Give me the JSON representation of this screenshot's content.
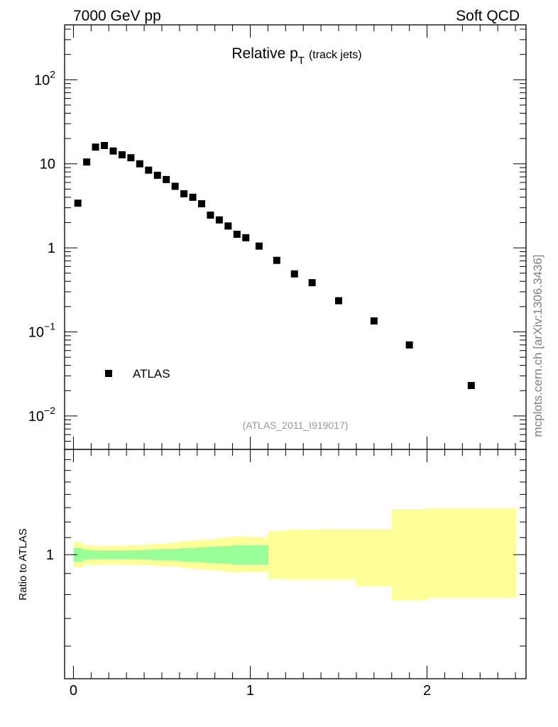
{
  "header": {
    "left": "7000 GeV pp",
    "right": "Soft QCD"
  },
  "plot_title": {
    "main": "Relative p",
    "sub": "T",
    "suffix": "(track jets)"
  },
  "watermark": "mcplots.cern.ch [arXiv:1306.3436]",
  "analysis_id": "(ATLAS_2011_I919017)",
  "colors": {
    "marker": "#000000",
    "band_stat": "#99ff99",
    "band_total": "#ffff99",
    "analysis_text": "#999999",
    "watermark_text": "#808080"
  },
  "chart_data": [
    {
      "type": "scatter",
      "panel": "main",
      "yscale": "log",
      "xlim": [
        -0.05,
        2.56
      ],
      "ylim": [
        0.004,
        450
      ],
      "grid": false,
      "legend": {
        "position": "bottom-left",
        "entries": [
          "ATLAS"
        ]
      },
      "yticks": [
        {
          "value": 0.01,
          "base": "10",
          "exp": "−2"
        },
        {
          "value": 0.1,
          "base": "10",
          "exp": "−1"
        },
        {
          "value": 1,
          "base": "1",
          "exp": ""
        },
        {
          "value": 10,
          "base": "10",
          "exp": ""
        },
        {
          "value": 100,
          "base": "10",
          "exp": "2"
        }
      ],
      "series": [
        {
          "name": "ATLAS",
          "x": [
            0.025,
            0.075,
            0.125,
            0.175,
            0.225,
            0.275,
            0.325,
            0.375,
            0.425,
            0.475,
            0.525,
            0.575,
            0.625,
            0.675,
            0.725,
            0.775,
            0.825,
            0.875,
            0.925,
            0.975,
            1.05,
            1.15,
            1.25,
            1.35,
            1.5,
            1.7,
            1.9,
            2.25
          ],
          "y": [
            3.4,
            10.5,
            15.8,
            16.5,
            14.2,
            12.8,
            11.8,
            10.0,
            8.4,
            7.3,
            6.5,
            5.4,
            4.4,
            4.0,
            3.35,
            2.45,
            2.15,
            1.82,
            1.45,
            1.32,
            1.05,
            0.71,
            0.49,
            0.385,
            0.235,
            0.135,
            0.07,
            0.023
          ]
        }
      ]
    },
    {
      "type": "area",
      "panel": "ratio",
      "yscale": "log",
      "xlim": [
        -0.05,
        2.56
      ],
      "ylim": [
        0.5,
        1.8
      ],
      "ylabel": "Ratio to ATLAS",
      "xticks": [
        0,
        1,
        2
      ],
      "yticks": [
        1
      ],
      "series": [
        {
          "name": "stat",
          "bins": [
            {
              "xlo": 0.0,
              "xhi": 0.05,
              "lo": 0.962,
              "hi": 1.038
            },
            {
              "xlo": 0.05,
              "xhi": 0.1,
              "lo": 0.972,
              "hi": 1.028
            },
            {
              "xlo": 0.1,
              "xhi": 0.15,
              "lo": 0.976,
              "hi": 1.024
            },
            {
              "xlo": 0.15,
              "xhi": 0.2,
              "lo": 0.976,
              "hi": 1.024
            },
            {
              "xlo": 0.2,
              "xhi": 0.25,
              "lo": 0.976,
              "hi": 1.024
            },
            {
              "xlo": 0.25,
              "xhi": 0.3,
              "lo": 0.976,
              "hi": 1.024
            },
            {
              "xlo": 0.3,
              "xhi": 0.35,
              "lo": 0.976,
              "hi": 1.024
            },
            {
              "xlo": 0.35,
              "xhi": 0.4,
              "lo": 0.974,
              "hi": 1.026
            },
            {
              "xlo": 0.4,
              "xhi": 0.45,
              "lo": 0.972,
              "hi": 1.028
            },
            {
              "xlo": 0.45,
              "xhi": 0.5,
              "lo": 0.97,
              "hi": 1.03
            },
            {
              "xlo": 0.5,
              "xhi": 0.55,
              "lo": 0.968,
              "hi": 1.032
            },
            {
              "xlo": 0.55,
              "xhi": 0.6,
              "lo": 0.966,
              "hi": 1.034
            },
            {
              "xlo": 0.6,
              "xhi": 0.65,
              "lo": 0.963,
              "hi": 1.037
            },
            {
              "xlo": 0.65,
              "xhi": 0.7,
              "lo": 0.961,
              "hi": 1.039
            },
            {
              "xlo": 0.7,
              "xhi": 0.75,
              "lo": 0.958,
              "hi": 1.042
            },
            {
              "xlo": 0.75,
              "xhi": 0.8,
              "lo": 0.955,
              "hi": 1.045
            },
            {
              "xlo": 0.8,
              "xhi": 0.85,
              "lo": 0.952,
              "hi": 1.048
            },
            {
              "xlo": 0.85,
              "xhi": 0.9,
              "lo": 0.95,
              "hi": 1.05
            },
            {
              "xlo": 0.9,
              "xhi": 0.95,
              "lo": 0.946,
              "hi": 1.054
            },
            {
              "xlo": 0.95,
              "xhi": 1.0,
              "lo": 0.946,
              "hi": 1.054
            },
            {
              "xlo": 1.0,
              "xhi": 1.1,
              "lo": 0.946,
              "hi": 1.054
            }
          ]
        },
        {
          "name": "total",
          "bins": [
            {
              "xlo": 0.0,
              "xhi": 0.05,
              "lo": 0.93,
              "hi": 1.075
            },
            {
              "xlo": 0.05,
              "xhi": 0.1,
              "lo": 0.945,
              "hi": 1.055
            },
            {
              "xlo": 0.1,
              "xhi": 0.15,
              "lo": 0.948,
              "hi": 1.052
            },
            {
              "xlo": 0.15,
              "xhi": 0.2,
              "lo": 0.948,
              "hi": 1.052
            },
            {
              "xlo": 0.2,
              "xhi": 0.25,
              "lo": 0.948,
              "hi": 1.052
            },
            {
              "xlo": 0.25,
              "xhi": 0.3,
              "lo": 0.948,
              "hi": 1.052
            },
            {
              "xlo": 0.3,
              "xhi": 0.35,
              "lo": 0.946,
              "hi": 1.056
            },
            {
              "xlo": 0.35,
              "xhi": 0.4,
              "lo": 0.944,
              "hi": 1.058
            },
            {
              "xlo": 0.4,
              "xhi": 0.45,
              "lo": 0.942,
              "hi": 1.06
            },
            {
              "xlo": 0.45,
              "xhi": 0.5,
              "lo": 0.94,
              "hi": 1.063
            },
            {
              "xlo": 0.5,
              "xhi": 0.55,
              "lo": 0.938,
              "hi": 1.066
            },
            {
              "xlo": 0.55,
              "xhi": 0.6,
              "lo": 0.935,
              "hi": 1.072
            },
            {
              "xlo": 0.6,
              "xhi": 0.65,
              "lo": 0.93,
              "hi": 1.078
            },
            {
              "xlo": 0.65,
              "xhi": 0.7,
              "lo": 0.926,
              "hi": 1.082
            },
            {
              "xlo": 0.7,
              "xhi": 0.75,
              "lo": 0.922,
              "hi": 1.087
            },
            {
              "xlo": 0.75,
              "xhi": 0.8,
              "lo": 0.918,
              "hi": 1.092
            },
            {
              "xlo": 0.8,
              "xhi": 0.85,
              "lo": 0.914,
              "hi": 1.098
            },
            {
              "xlo": 0.85,
              "xhi": 0.9,
              "lo": 0.91,
              "hi": 1.103
            },
            {
              "xlo": 0.9,
              "xhi": 0.95,
              "lo": 0.905,
              "hi": 1.108
            },
            {
              "xlo": 0.95,
              "xhi": 1.0,
              "lo": 0.91,
              "hi": 1.105
            },
            {
              "xlo": 1.0,
              "xhi": 1.1,
              "lo": 0.91,
              "hi": 1.103
            },
            {
              "xlo": 1.1,
              "xhi": 1.2,
              "lo": 0.875,
              "hi": 1.142
            },
            {
              "xlo": 1.2,
              "xhi": 1.4,
              "lo": 0.87,
              "hi": 1.15
            },
            {
              "xlo": 1.4,
              "xhi": 1.6,
              "lo": 0.87,
              "hi": 1.155
            },
            {
              "xlo": 1.6,
              "xhi": 1.8,
              "lo": 0.84,
              "hi": 1.155
            },
            {
              "xlo": 1.8,
              "xhi": 2.0,
              "lo": 0.775,
              "hi": 1.29
            },
            {
              "xlo": 2.0,
              "xhi": 2.5,
              "lo": 0.785,
              "hi": 1.295
            }
          ]
        }
      ]
    }
  ]
}
